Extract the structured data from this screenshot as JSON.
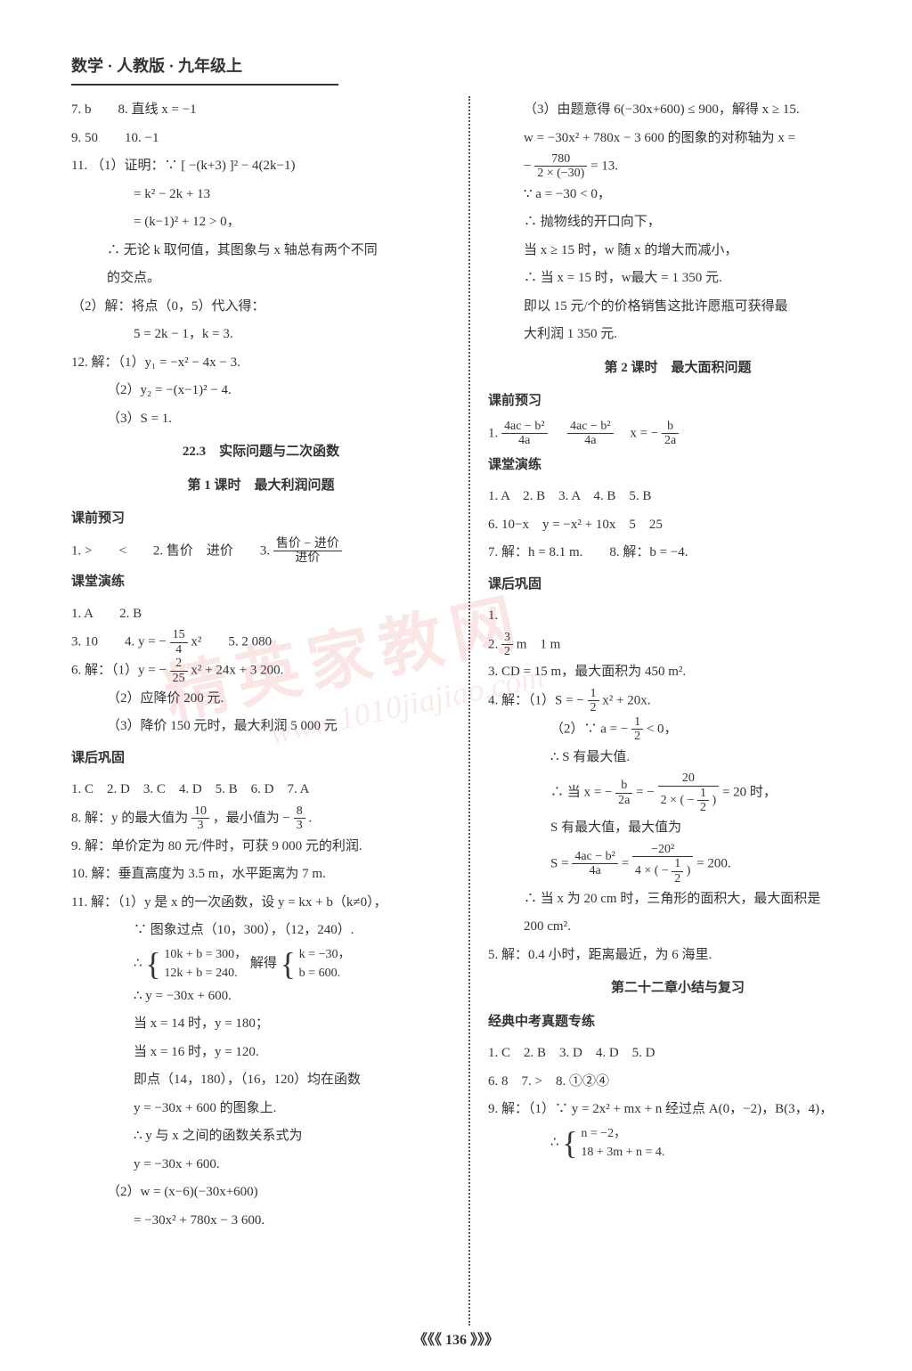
{
  "header": "数学 · 人教版 · 九年级上",
  "page_number": "《《《 136 》》》",
  "watermark_main": "精英家教网",
  "watermark_url": "www.1010jiajiao.com",
  "left": {
    "l1": "7. b　　8. 直线 x = −1",
    "l2": "9. 50　　10. −1",
    "l3": "11. （1）证明：∵ [ −(k+3) ]² − 4(2k−1)",
    "l4": "= k² − 2k + 13",
    "l5": "= (k−1)² + 12 > 0，",
    "l6": "∴ 无论 k 取何值，其图象与 x 轴总有两个不同",
    "l6b": "的交点。",
    "l7": "（2）解：将点（0，5）代入得：",
    "l8": "5 = 2k − 1，k = 3.",
    "l9": "12. 解：（1）y₁ = −x² − 4x − 3.",
    "l10": "（2）y₂ = −(x−1)² − 4.",
    "l11": "（3）S = 1.",
    "sec1_title": "22.3　实际问题与二次函数",
    "sec1_sub": "第 1 课时　最大利润问题",
    "sub_pre": "课前预习",
    "l12a": "1. >　　<　　2. 售价　进价　　3. ",
    "l12_frac_num": "售价 − 进价",
    "l12_frac_den": "进价",
    "sub_class": "课堂演练",
    "l13": "1. A　　2. B",
    "l14a": "3. 10　　4. y = − ",
    "l14_num": "15",
    "l14_den": "4",
    "l14b": "x²　　5. 2 080",
    "l15a": "6. 解：（1）y = − ",
    "l15_num": "2",
    "l15_den": "25",
    "l15b": "x² + 24x + 3 200.",
    "l16": "（2）应降价 200 元.",
    "l17": "（3）降价 150 元时，最大利润 5 000 元",
    "sub_after": "课后巩固",
    "l18": "1. C　2. D　3. C　4. D　5. B　6. D　7. A",
    "l19a": "8. 解：y 的最大值为",
    "l19_num1": "10",
    "l19_den1": "3",
    "l19b": "，最小值为 − ",
    "l19_num2": "8",
    "l19_den2": "3",
    "l19c": ".",
    "l20": "9. 解：单价定为 80 元/件时，可获 9 000 元的利润.",
    "l21": "10. 解：垂直高度为 3.5 m，水平距离为 7 m.",
    "l22": "11. 解：（1）y 是 x 的一次函数，设 y = kx + b（k≠0），",
    "l23": "∵ 图象过点（10，300），（12，240）.",
    "l24a": "∴ ",
    "l24_sys1a": "10k + b = 300，",
    "l24_sys1b": "12k + b = 240.",
    "l24b": " 解得 ",
    "l24_sys2a": "k = −30，",
    "l24_sys2b": "b = 600.",
    "l25": "∴ y = −30x + 600.",
    "l26": "当 x = 14 时，y = 180；",
    "l27": "当 x = 16 时，y = 120.",
    "l28": "即点（14，180），（16，120）均在函数",
    "l29": "y = −30x + 600 的图象上.",
    "l30": "∴ y 与 x 之间的函数关系式为",
    "l31": "y = −30x + 600.",
    "l32": "（2）w = (x−6)(−30x+600)",
    "l33": "= −30x² + 780x − 3 600."
  },
  "right": {
    "r1": "（3）由题意得 6(−30x+600) ≤ 900，解得 x ≥ 15.",
    "r2": "w = −30x² + 780x − 3 600 的图象的对称轴为 x =",
    "r3a": "− ",
    "r3_num": "780",
    "r3_den": "2 × (−30)",
    "r3b": " = 13.",
    "r4": "∵ a = −30 < 0，",
    "r5": "∴ 抛物线的开口向下，",
    "r6": "当 x ≥ 15 时，w 随 x 的增大而减小，",
    "r7": "∴ 当 x = 15 时，w最大 = 1 350 元.",
    "r8": "即以 15 元/个的价格销售这批许愿瓶可获得最",
    "r8b": "大利润 1 350 元.",
    "sec2": "第 2 课时　最大面积问题",
    "sub_pre": "课前预习",
    "r9a": "1. ",
    "r9_num1": "4ac − b²",
    "r9_den1": "4a",
    "r9b": "　",
    "r9_num2": "4ac − b²",
    "r9_den2": "4a",
    "r9c": "　x = − ",
    "r9_num3": "b",
    "r9_den3": "2a",
    "sub_class": "课堂演练",
    "r10": "1. A　2. B　3. A　4. B　5. B",
    "r11": "6. 10−x　y = −x² + 10x　5　25",
    "r12": "7. 解：h = 8.1 m.　　8. 解：b = −4.",
    "sub_after": "课后巩固",
    "r13": "1. ",
    "r14a": "2. ",
    "r14_num": "3",
    "r14_den": "2",
    "r14b": " m　1 m",
    "r15": "3. CD = 15 m，最大面积为 450 m².",
    "r16a": "4. 解：（1）S = − ",
    "r16_num": "1",
    "r16_den": "2",
    "r16b": "x² + 20x.",
    "r17a": "（2）∵ a = − ",
    "r17_num": "1",
    "r17_den": "2",
    "r17b": " < 0，",
    "r18": "∴ S 有最大值.",
    "r19a": "∴ 当 x = − ",
    "r19_num1": "b",
    "r19_den1": "2a",
    "r19b": " = − ",
    "r19_num2": "20",
    "r19_den2_a": "2 × ( − ",
    "r19_den2_num": "1",
    "r19_den2_den": "2",
    "r19_den2_b": " )",
    "r19c": " = 20 时，",
    "r20": "S 有最大值，最大值为",
    "r21a": "S = ",
    "r21_num1": "4ac − b²",
    "r21_den1": "4a",
    "r21b": " = ",
    "r21_num2": "−20²",
    "r21_den2_a": "4 × ( − ",
    "r21_den2_num": "1",
    "r21_den2_den": "2",
    "r21_den2_b": " )",
    "r21c": " = 200.",
    "r22": "∴ 当 x 为 20 cm 时，三角形的面积大，最大面积是",
    "r23": "200 cm².",
    "r24": "5. 解：0.4 小时，距离最近，为 6 海里.",
    "sec3": "第二十二章小结与复习",
    "sub_exam": "经典中考真题专练",
    "r25": "1. C　2. B　3. D　4. D　5. D",
    "r26": "6. 8　7. >　8. ①②④",
    "r27": "9. 解：（1）∵ y = 2x² + mx + n 经过点 A(0，−2)，B(3，4)，",
    "r28a": "∴ ",
    "r28_sys1": "n = −2，",
    "r28_sys2": "18 + 3m + n = 4."
  }
}
